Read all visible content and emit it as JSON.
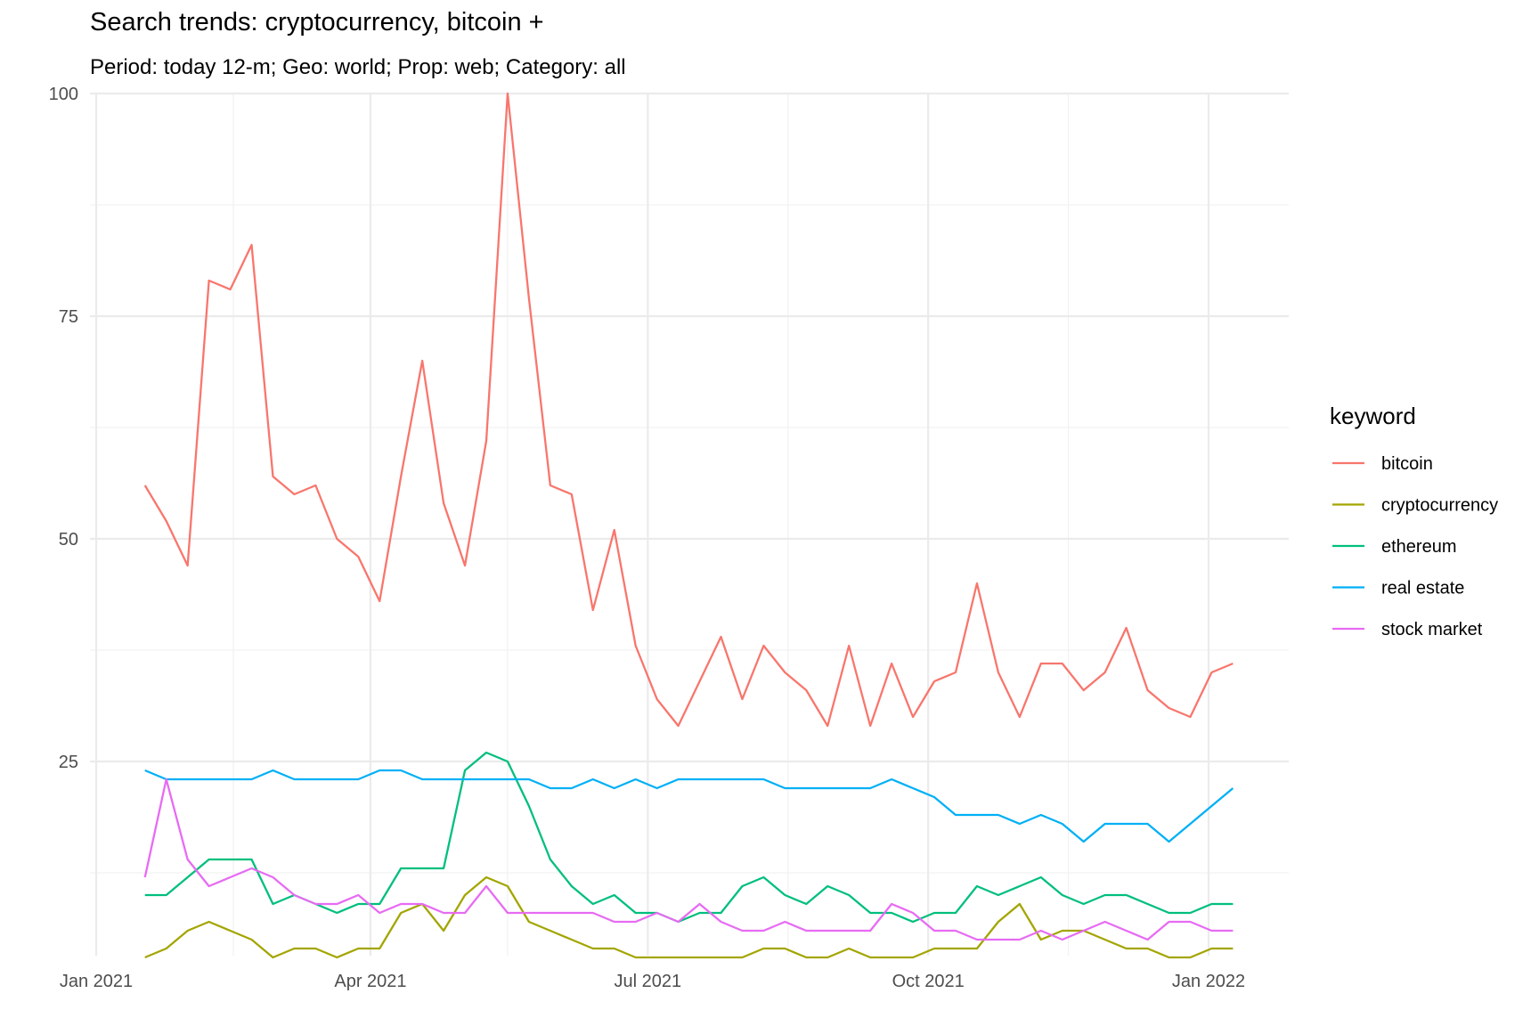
{
  "chart_data": {
    "type": "line",
    "title": "Search trends: cryptocurrency, bitcoin +",
    "subtitle": "Period: today 12-m; Geo: world; Prop: web; Category: all",
    "xlabel": "",
    "ylabel": "",
    "ylim": [
      0,
      100
    ],
    "xlim": [
      "2021-01-01",
      "2022-01-31"
    ],
    "grid": true,
    "legend_position": "right",
    "legend_title": "keyword",
    "y_ticks": [
      {
        "value": 25,
        "label": "25"
      },
      {
        "value": 50,
        "label": "50"
      },
      {
        "value": 75,
        "label": "75"
      },
      {
        "value": 100,
        "label": "100"
      }
    ],
    "x_ticks": [
      {
        "date": "2021-01-01",
        "label": "Jan 2021"
      },
      {
        "date": "2021-04-01",
        "label": "Apr 2021"
      },
      {
        "date": "2021-07-01",
        "label": "Jul 2021"
      },
      {
        "date": "2021-10-01",
        "label": "Oct 2021"
      },
      {
        "date": "2022-01-01",
        "label": "Jan 2022"
      }
    ],
    "x_minor_dates": [
      "2021-02-15",
      "2021-05-16",
      "2021-08-16",
      "2021-11-16"
    ],
    "y_minor_values": [
      12.5,
      37.5,
      62.5,
      87.5
    ],
    "x_start_date": "2021-01-17",
    "x_step_days": 7,
    "series": [
      {
        "name": "bitcoin",
        "color": "#F8766D",
        "values": [
          56,
          52,
          47,
          79,
          78,
          83,
          57,
          55,
          56,
          50,
          48,
          43,
          57,
          70,
          54,
          47,
          61,
          100,
          77,
          56,
          55,
          42,
          51,
          38,
          32,
          29,
          34,
          39,
          32,
          38,
          35,
          33,
          29,
          38,
          29,
          36,
          30,
          34,
          35,
          45,
          35,
          30,
          36,
          36,
          33,
          35,
          40,
          33,
          31,
          30,
          35,
          36
        ]
      },
      {
        "name": "cryptocurrency",
        "color": "#A3A500",
        "values": [
          3,
          4,
          6,
          7,
          6,
          5,
          3,
          4,
          4,
          3,
          4,
          4,
          8,
          9,
          6,
          10,
          12,
          11,
          7,
          6,
          5,
          4,
          4,
          3,
          3,
          3,
          3,
          3,
          3,
          4,
          4,
          3,
          3,
          4,
          3,
          3,
          3,
          4,
          4,
          4,
          7,
          9,
          5,
          6,
          6,
          5,
          4,
          4,
          3,
          3,
          4,
          4
        ]
      },
      {
        "name": "ethereum",
        "color": "#00BF7D",
        "values": [
          10,
          10,
          12,
          14,
          14,
          14,
          9,
          10,
          9,
          8,
          9,
          9,
          13,
          13,
          13,
          24,
          26,
          25,
          20,
          14,
          11,
          9,
          10,
          8,
          8,
          7,
          8,
          8,
          11,
          12,
          10,
          9,
          11,
          10,
          8,
          8,
          7,
          8,
          8,
          11,
          10,
          11,
          12,
          10,
          9,
          10,
          10,
          9,
          8,
          8,
          9,
          9
        ]
      },
      {
        "name": "real estate",
        "color": "#00B0F6",
        "values": [
          24,
          23,
          23,
          23,
          23,
          23,
          24,
          23,
          23,
          23,
          23,
          24,
          24,
          23,
          23,
          23,
          23,
          23,
          23,
          22,
          22,
          23,
          22,
          23,
          22,
          23,
          23,
          23,
          23,
          23,
          22,
          22,
          22,
          22,
          22,
          23,
          22,
          21,
          19,
          19,
          19,
          18,
          19,
          18,
          16,
          18,
          18,
          18,
          16,
          18,
          20,
          22
        ]
      },
      {
        "name": "stock market",
        "color": "#E76BF3",
        "values": [
          12,
          23,
          14,
          11,
          12,
          13,
          12,
          10,
          9,
          9,
          10,
          8,
          9,
          9,
          8,
          8,
          11,
          8,
          8,
          8,
          8,
          8,
          7,
          7,
          8,
          7,
          9,
          7,
          6,
          6,
          7,
          6,
          6,
          6,
          6,
          9,
          8,
          6,
          6,
          5,
          5,
          5,
          6,
          5,
          6,
          7,
          6,
          5,
          7,
          7,
          6,
          6
        ]
      }
    ]
  }
}
